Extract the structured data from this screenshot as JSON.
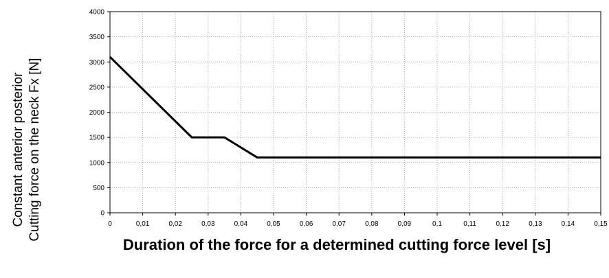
{
  "chart_data": {
    "type": "line",
    "title": "",
    "xlabel": "Duration of the force for a determined cutting force level [s]",
    "ylabel": [
      "Constant anterior posterior",
      "Cutting force on the neck Fx [N]"
    ],
    "xlim": [
      0,
      0.15
    ],
    "ylim": [
      0,
      4000
    ],
    "x_ticks": [
      0,
      0.01,
      0.02,
      0.03,
      0.04,
      0.05,
      0.06,
      0.07,
      0.08,
      0.09,
      0.1,
      0.11,
      0.12,
      0.13,
      0.14,
      0.15
    ],
    "x_tick_labels": [
      "0",
      "0,01",
      "0,02",
      "0,03",
      "0,04",
      "0,05",
      "0,06",
      "0,07",
      "0,08",
      "0,09",
      "0,1",
      "0,11",
      "0,12",
      "0,13",
      "0,14",
      "0,15"
    ],
    "y_ticks": [
      0,
      500,
      1000,
      1500,
      2000,
      2500,
      3000,
      3500,
      4000
    ],
    "y_tick_labels": [
      "0",
      "500",
      "1000",
      "1500",
      "2000",
      "2500",
      "3000",
      "3500",
      "4000"
    ],
    "grid": true,
    "series": [
      {
        "x": [
          0,
          0.025,
          0.035,
          0.045,
          0.15
        ],
        "y": [
          3100,
          1500,
          1500,
          1100,
          1100
        ],
        "color": "#000000"
      }
    ]
  }
}
